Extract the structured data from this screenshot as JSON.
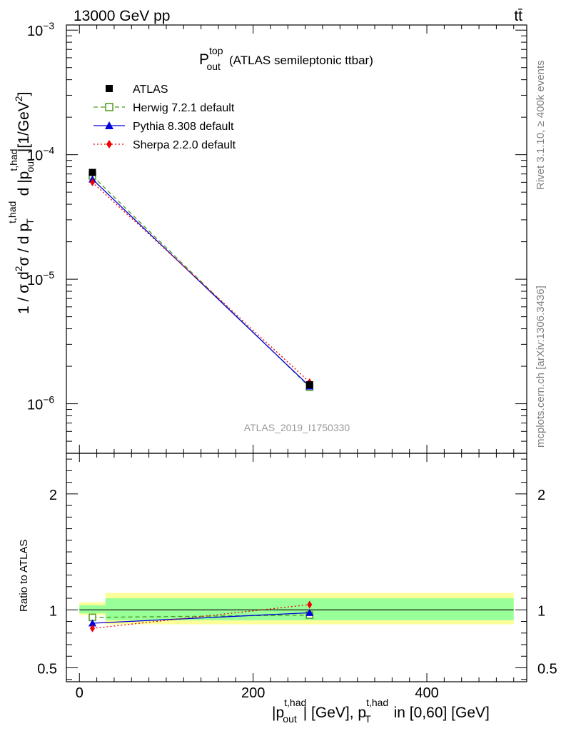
{
  "header": {
    "beam": "13000 GeV pp",
    "process": "tt̄"
  },
  "side_text": {
    "rivet": "Rivet 3.1.10, ≥ 400k events",
    "mcplots": "mcplots.cern.ch [arXiv:1306.3436]"
  },
  "chart_data": [
    {
      "type": "line",
      "panel": "main",
      "title_main": "P",
      "title_sup": "top",
      "title_sub": "out",
      "title_rest": "(ATLAS semileptonic ttbar)",
      "analysis_label": "ATLAS_2019_I1750330",
      "ylabel": "1 / σ d²σ / d p_T^{t,had} d |p_out^{t,had}| [1/GeV²]",
      "yscale": "log",
      "ylim": [
        4e-07,
        0.0011
      ],
      "xlim": [
        -15,
        515
      ],
      "y_tick_labels": [
        {
          "value": 1e-06,
          "base": "10",
          "exp": "−6"
        },
        {
          "value": 1e-05,
          "base": "10",
          "exp": "−5"
        },
        {
          "value": 0.0001,
          "base": "10",
          "exp": "−4"
        },
        {
          "value": 0.001,
          "base": "10",
          "exp": "−3"
        }
      ],
      "legend_position": "top-left",
      "series": [
        {
          "name": "ATLAS",
          "color": "#000000",
          "marker": "filled-square",
          "line": "none",
          "x": [
            15,
            265
          ],
          "y": [
            7.2e-05,
            1.42e-06
          ],
          "yerr": [
            2.5e-06,
            1e-07
          ]
        },
        {
          "name": "Herwig 7.2.1 default",
          "color": "#4a9a1a",
          "marker": "open-square",
          "line": "dashed",
          "x": [
            15,
            265
          ],
          "y": [
            6.75e-05,
            1.36e-06
          ]
        },
        {
          "name": "Pythia 8.308 default",
          "color": "#0000dd",
          "marker": "triangle",
          "line": "solid",
          "x": [
            15,
            265
          ],
          "y": [
            6.35e-05,
            1.38e-06
          ]
        },
        {
          "name": "Sherpa 2.2.0 default",
          "color": "#ee0000",
          "marker": "diamond",
          "line": "dotted",
          "x": [
            15,
            265
          ],
          "y": [
            6e-05,
            1.49e-06
          ]
        }
      ]
    },
    {
      "type": "line",
      "panel": "ratio",
      "ylabel": "Ratio to ATLAS",
      "xlabel": "|p_out^{t,had}| [GeV], p_T^{t,had} in [0,60] [GeV]",
      "ylim": [
        0.38,
        2.35
      ],
      "xlim": [
        -15,
        515
      ],
      "y_tick_labels": [
        "0.5",
        "1",
        "2"
      ],
      "x_tick_labels": [
        "0",
        "200",
        "400"
      ],
      "bands": {
        "inner_color": "#99ff99",
        "outer_color": "#ffff99",
        "bins": [
          {
            "x0": 0,
            "x1": 30,
            "inner": [
              0.97,
              1.04
            ],
            "outer": [
              0.955,
              1.065
            ]
          },
          {
            "x0": 30,
            "x1": 500,
            "inner": [
              0.91,
              1.1
            ],
            "outer": [
              0.875,
              1.145
            ]
          }
        ]
      },
      "series": [
        {
          "name": "Herwig 7.2.1 default",
          "x": [
            15,
            265
          ],
          "y": [
            0.935,
            0.955
          ]
        },
        {
          "name": "Pythia 8.308 default",
          "x": [
            15,
            265
          ],
          "y": [
            0.885,
            0.975
          ]
        },
        {
          "name": "Sherpa 2.2.0 default",
          "x": [
            15,
            265
          ],
          "y": [
            0.84,
            1.045
          ]
        }
      ]
    }
  ]
}
